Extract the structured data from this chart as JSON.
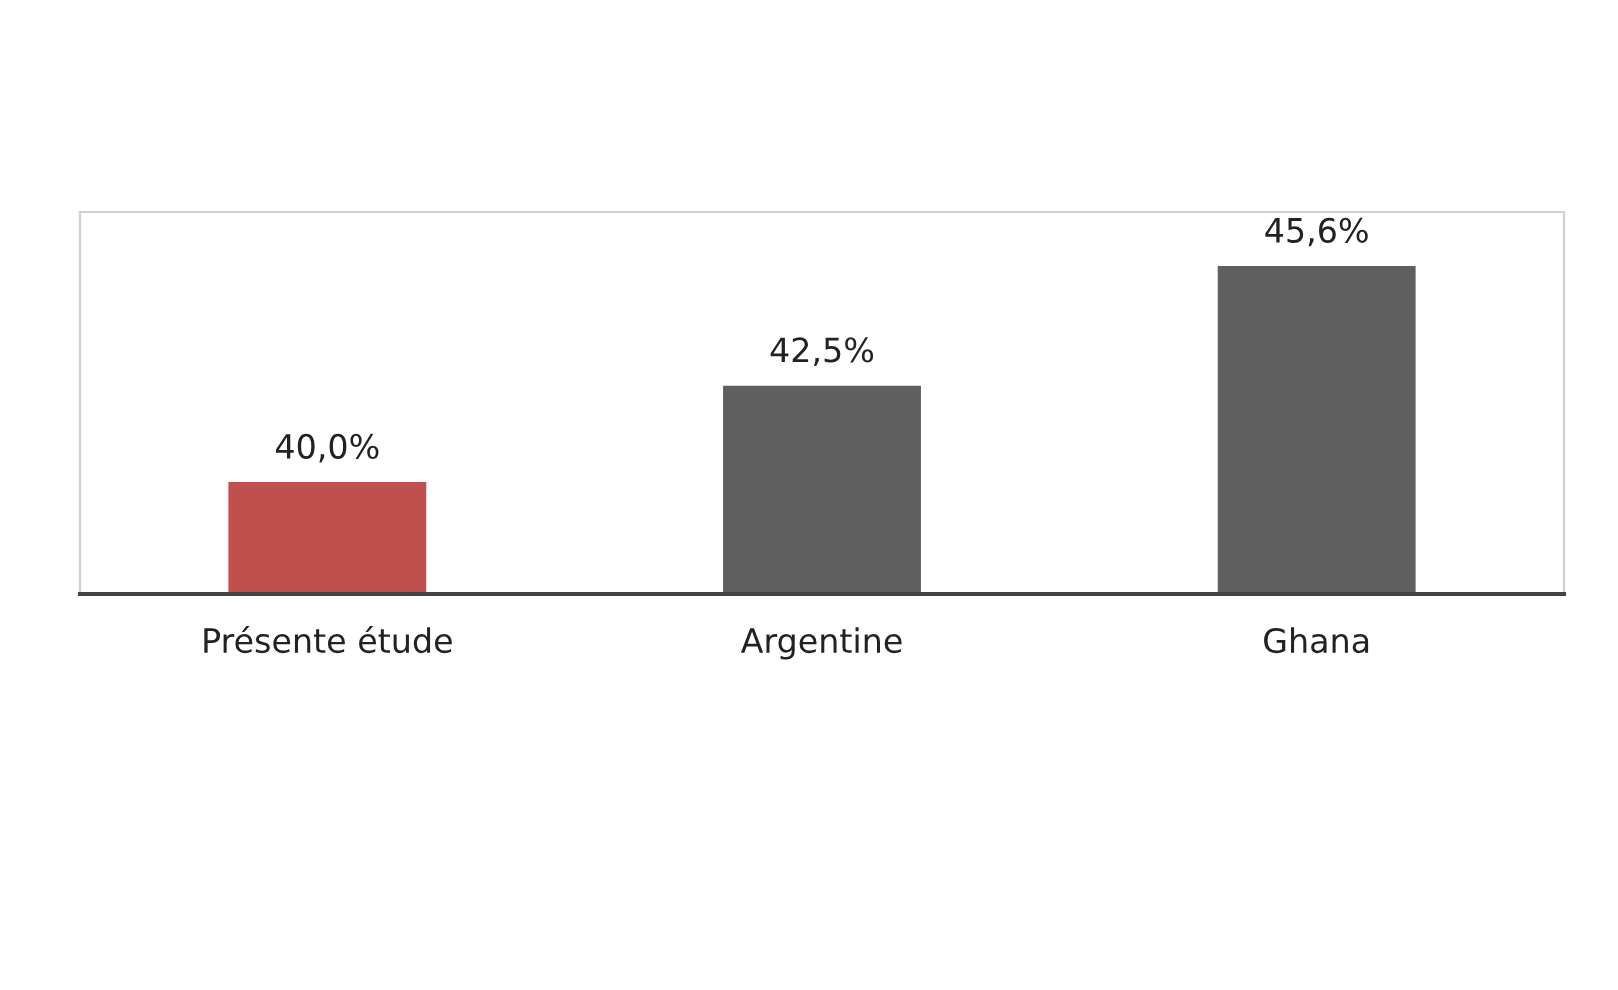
{
  "chart_data": {
    "type": "bar",
    "categories": [
      "Présente étude",
      "Argentine",
      "Ghana"
    ],
    "values": [
      40.0,
      42.5,
      45.6
    ],
    "colors": [
      "#c0504d",
      "#5f5f5f",
      "#5f5f5f"
    ],
    "value_labels": [
      "40,0%",
      "42,5%",
      "45,6%"
    ],
    "ylim": [
      37.1,
      47.0
    ],
    "grid": false,
    "legend": false
  }
}
